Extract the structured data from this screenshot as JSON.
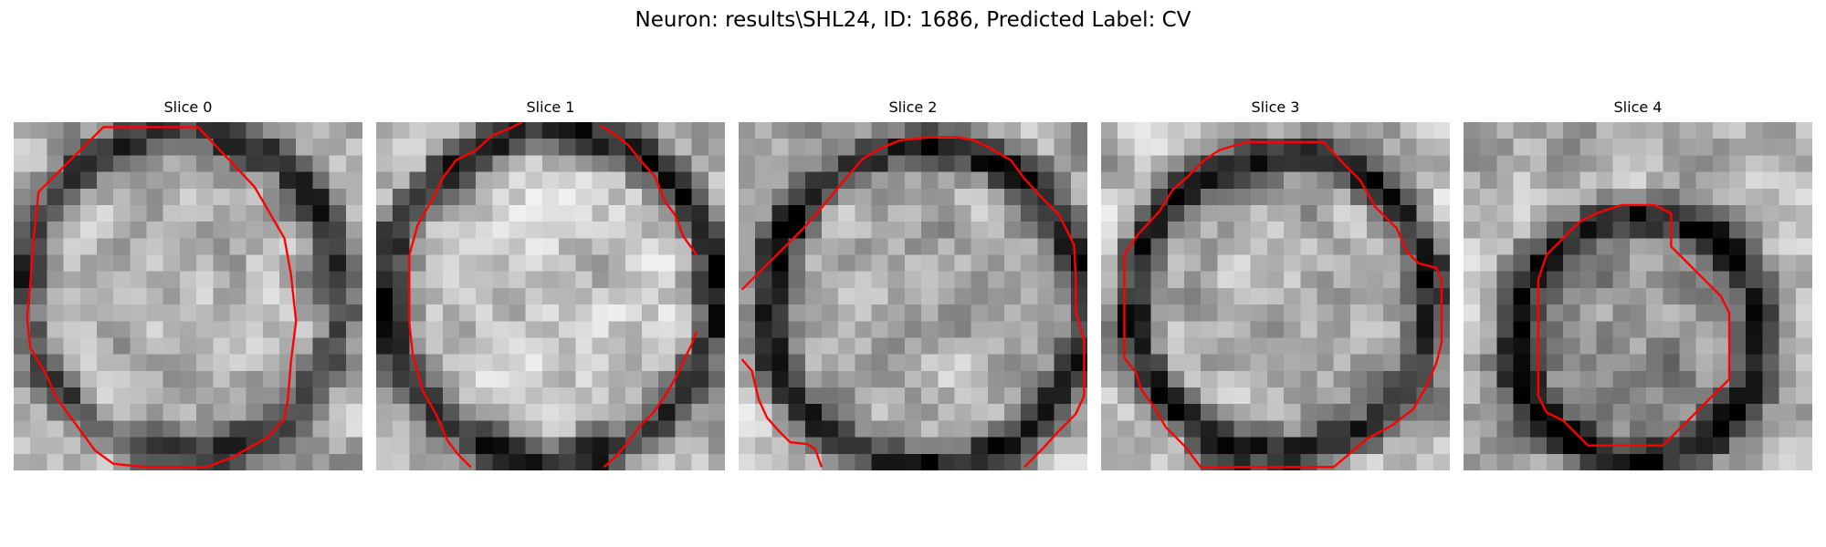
{
  "figure": {
    "title": "Neuron: results\\SHL24, ID: 1686, Predicted Label: CV"
  },
  "colors": {
    "contour": "#ff0000",
    "background": "#ffffff"
  },
  "slices": [
    {
      "title": "Slice 0",
      "contour_open": false,
      "contour": [
        [
          1.5,
          4.2
        ],
        [
          5.4,
          0.3
        ],
        [
          11.1,
          0.3
        ],
        [
          12.9,
          2.2
        ],
        [
          14.5,
          3.9
        ],
        [
          16.3,
          7.0
        ],
        [
          16.7,
          9.2
        ],
        [
          17.0,
          12.0
        ],
        [
          16.7,
          14.4
        ],
        [
          16.5,
          16.8
        ],
        [
          16.3,
          17.9
        ],
        [
          15.3,
          19.0
        ],
        [
          14.4,
          19.5
        ],
        [
          13.2,
          20.2
        ],
        [
          11.6,
          20.8
        ],
        [
          10.1,
          20.8
        ],
        [
          8.0,
          20.8
        ],
        [
          6.0,
          20.6
        ],
        [
          4.9,
          19.8
        ],
        [
          3.8,
          18.3
        ],
        [
          3.0,
          17.2
        ],
        [
          2.5,
          16.5
        ],
        [
          2.0,
          15.3
        ],
        [
          1.0,
          13.6
        ],
        [
          0.8,
          11.8
        ],
        [
          1.0,
          9.8
        ],
        [
          1.2,
          7.0
        ]
      ]
    },
    {
      "title": "Slice 1",
      "contour_open": true,
      "contour": [
        [
          5.7,
          20.8
        ],
        [
          4.9,
          20.0
        ],
        [
          4.3,
          19.2
        ],
        [
          3.6,
          17.6
        ],
        [
          2.8,
          16.2
        ],
        [
          2.2,
          14.0
        ],
        [
          2.0,
          12.1
        ],
        [
          2.0,
          10.1
        ],
        [
          2.0,
          8.0
        ],
        [
          2.5,
          6.2
        ],
        [
          3.3,
          4.8
        ],
        [
          4.0,
          3.4
        ],
        [
          4.8,
          2.3
        ],
        [
          6.0,
          1.7
        ],
        [
          7.0,
          0.8
        ],
        [
          8.0,
          0.4
        ],
        [
          8.8,
          0.0
        ]
      ]
    },
    {
      "title": "Slice 1",
      "contour_open": true,
      "contour": [
        [
          13.5,
          0.2
        ],
        [
          14.3,
          0.7
        ],
        [
          15.2,
          1.4
        ],
        [
          16.0,
          2.4
        ],
        [
          16.8,
          3.3
        ],
        [
          17.4,
          4.8
        ],
        [
          18.0,
          5.6
        ],
        [
          18.5,
          6.9
        ],
        [
          19.3,
          8.0
        ]
      ]
    },
    {
      "title": "Slice 1",
      "contour_open": true,
      "contour": [
        [
          19.3,
          12.6
        ],
        [
          19.0,
          13.4
        ],
        [
          18.5,
          14.4
        ],
        [
          18.1,
          15.3
        ],
        [
          17.4,
          16.5
        ],
        [
          16.7,
          17.5
        ],
        [
          15.9,
          18.3
        ],
        [
          15.1,
          19.4
        ],
        [
          14.3,
          20.3
        ],
        [
          13.7,
          20.8
        ]
      ]
    },
    {
      "title": "Slice 2",
      "contour_open": true,
      "contour": [
        [
          0.2,
          10.1
        ],
        [
          1.5,
          8.8
        ],
        [
          2.7,
          7.6
        ],
        [
          3.9,
          6.4
        ],
        [
          4.8,
          5.4
        ],
        [
          5.7,
          4.3
        ],
        [
          6.7,
          3.1
        ],
        [
          7.5,
          2.2
        ],
        [
          8.5,
          1.6
        ],
        [
          9.7,
          1.1
        ],
        [
          11.6,
          0.9
        ],
        [
          13.1,
          0.9
        ],
        [
          14.2,
          1.1
        ],
        [
          15.2,
          1.6
        ],
        [
          16.4,
          2.3
        ],
        [
          17.2,
          3.4
        ],
        [
          18.3,
          4.6
        ],
        [
          19.3,
          5.6
        ],
        [
          20.2,
          7.4
        ],
        [
          20.3,
          9.4
        ],
        [
          20.3,
          11.4
        ],
        [
          20.8,
          13.2
        ],
        [
          20.8,
          15.2
        ],
        [
          20.8,
          16.5
        ],
        [
          20.3,
          17.6
        ],
        [
          19.3,
          18.6
        ],
        [
          18.3,
          19.7
        ],
        [
          17.2,
          20.8
        ]
      ]
    },
    {
      "title": "Slice 2",
      "contour_open": true,
      "contour": [
        [
          0.2,
          14.3
        ],
        [
          0.8,
          15.0
        ],
        [
          1.2,
          16.7
        ],
        [
          1.7,
          17.8
        ],
        [
          2.4,
          18.6
        ],
        [
          3.1,
          19.3
        ],
        [
          4.1,
          19.4
        ],
        [
          4.6,
          19.7
        ],
        [
          5.0,
          20.8
        ]
      ]
    },
    {
      "title": "Slice 3",
      "contour_open": false,
      "contour": [
        [
          6.0,
          20.8
        ],
        [
          5.0,
          19.5
        ],
        [
          3.9,
          18.4
        ],
        [
          3.2,
          17.2
        ],
        [
          2.4,
          16.1
        ],
        [
          2.1,
          15.1
        ],
        [
          1.4,
          14.2
        ],
        [
          1.4,
          12.2
        ],
        [
          1.4,
          10.2
        ],
        [
          1.4,
          8.0
        ],
        [
          2.2,
          6.8
        ],
        [
          3.5,
          5.4
        ],
        [
          4.3,
          4.1
        ],
        [
          5.2,
          3.3
        ],
        [
          6.2,
          2.3
        ],
        [
          7.1,
          1.7
        ],
        [
          8.7,
          1.2
        ],
        [
          11.0,
          1.2
        ],
        [
          13.4,
          1.2
        ],
        [
          14.6,
          2.5
        ],
        [
          15.6,
          3.5
        ],
        [
          16.5,
          5.1
        ],
        [
          17.8,
          6.4
        ],
        [
          18.4,
          7.8
        ],
        [
          19.1,
          8.5
        ],
        [
          20.2,
          8.8
        ],
        [
          20.5,
          9.5
        ],
        [
          20.5,
          11.5
        ],
        [
          20.5,
          13.3
        ],
        [
          20.2,
          14.5
        ],
        [
          19.6,
          15.9
        ],
        [
          18.8,
          17.3
        ],
        [
          17.5,
          18.3
        ],
        [
          16.0,
          19.1
        ],
        [
          14.6,
          20.3
        ],
        [
          14.0,
          20.8
        ]
      ]
    },
    {
      "title": "Slice 4",
      "contour_open": false,
      "contour": [
        [
          4.5,
          9.5
        ],
        [
          5.0,
          8.0
        ],
        [
          6.0,
          7.0
        ],
        [
          7.0,
          6.0
        ],
        [
          8.0,
          5.5
        ],
        [
          9.5,
          5.0
        ],
        [
          11.5,
          5.0
        ],
        [
          12.5,
          5.5
        ],
        [
          12.5,
          7.5
        ],
        [
          13.5,
          8.5
        ],
        [
          14.5,
          9.5
        ],
        [
          15.5,
          10.5
        ],
        [
          16.0,
          11.5
        ],
        [
          16.0,
          13.5
        ],
        [
          16.0,
          15.5
        ],
        [
          15.0,
          16.5
        ],
        [
          14.0,
          17.5
        ],
        [
          13.0,
          18.5
        ],
        [
          12.0,
          19.5
        ],
        [
          10.5,
          19.5
        ],
        [
          9.0,
          19.5
        ],
        [
          7.5,
          19.5
        ],
        [
          6.5,
          18.5
        ],
        [
          6.0,
          18.0
        ],
        [
          5.0,
          17.5
        ],
        [
          4.5,
          16.5
        ],
        [
          4.5,
          14.5
        ],
        [
          4.5,
          12.0
        ]
      ]
    }
  ]
}
